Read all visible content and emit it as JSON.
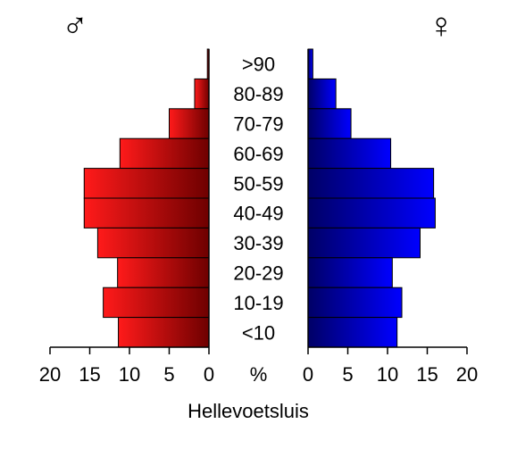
{
  "chart_data": {
    "type": "bar",
    "subtype": "population-pyramid",
    "title": "",
    "xlabel": "Hellevoetsluis",
    "unit_label": "%",
    "categories": [
      ">90",
      "80-89",
      "70-79",
      "60-69",
      "50-59",
      "40-49",
      "30-39",
      "20-29",
      "10-19",
      "<10"
    ],
    "series": [
      {
        "name": "male",
        "symbol": "♂",
        "values": [
          0.2,
          1.8,
          5.0,
          11.2,
          15.7,
          15.7,
          14.0,
          11.5,
          13.3,
          11.4
        ]
      },
      {
        "name": "female",
        "symbol": "♀",
        "values": [
          0.6,
          3.5,
          5.4,
          10.4,
          15.8,
          16.0,
          14.1,
          10.6,
          11.8,
          11.2
        ]
      }
    ],
    "xlim": [
      0,
      20
    ],
    "xticks": [
      "20",
      "15",
      "10",
      "5",
      "0"
    ],
    "xticks_right": [
      "0",
      "5",
      "10",
      "15",
      "20"
    ],
    "colors": {
      "male_light": "#ff1a1a",
      "male_dark": "#6e0000",
      "female_light": "#0000ff",
      "female_dark": "#000066"
    }
  }
}
